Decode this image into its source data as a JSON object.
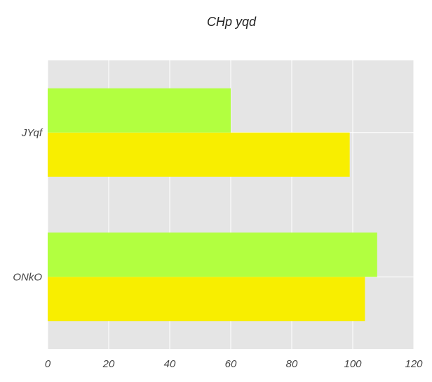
{
  "chart_data": {
    "type": "bar",
    "orientation": "horizontal",
    "title": "CHp yqd",
    "xlabel": "",
    "ylabel": "",
    "categories": [
      "ONkO",
      "JYqf"
    ],
    "series": [
      {
        "values": [
          104,
          99
        ]
      },
      {
        "values": [
          108,
          60
        ]
      }
    ],
    "xlim": [
      0,
      120
    ],
    "xticks": [
      "0",
      "20",
      "40",
      "60",
      "80",
      "100",
      "120"
    ],
    "grid": true,
    "colors": {
      "plot_background": "#e5e5e5",
      "series": [
        "#f8ee00",
        "#b2ff40"
      ]
    }
  }
}
